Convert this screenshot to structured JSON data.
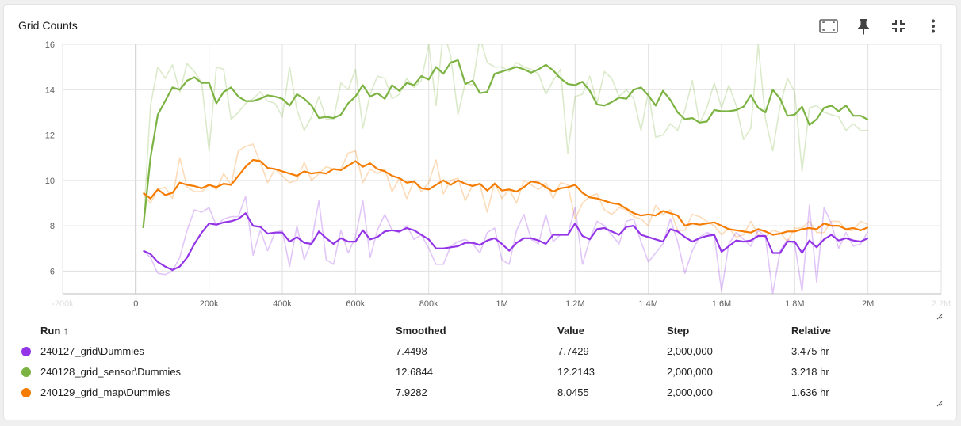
{
  "card": {
    "title": "Grid Counts"
  },
  "toolbar": [
    {
      "name": "fit-to-data-icon"
    },
    {
      "name": "pin-icon"
    },
    {
      "name": "collapse-icon"
    },
    {
      "name": "more-vert-icon"
    }
  ],
  "table": {
    "headers": {
      "run": "Run ↑",
      "smoothed": "Smoothed",
      "value": "Value",
      "step": "Step",
      "relative": "Relative"
    },
    "rows": [
      {
        "color": "#9334e6",
        "run": "240127_grid\\Dummies",
        "smoothed": "7.4498",
        "value": "7.7429",
        "step": "2,000,000",
        "relative": "3.475 hr"
      },
      {
        "color": "#7cb342",
        "run": "240128_grid_sensor\\Dummies",
        "smoothed": "12.6844",
        "value": "12.2143",
        "step": "2,000,000",
        "relative": "3.218 hr"
      },
      {
        "color": "#f57c00",
        "run": "240129_grid_map\\Dummies",
        "smoothed": "7.9282",
        "value": "8.0455",
        "step": "2,000,000",
        "relative": "1.636 hr"
      }
    ]
  },
  "chart_data": {
    "type": "line",
    "title": "Grid Counts",
    "xlim": [
      -200000,
      2200000
    ],
    "ylim": [
      5,
      16
    ],
    "x_ticks": [
      -200000,
      0,
      200000,
      400000,
      600000,
      800000,
      1000000,
      1200000,
      1400000,
      1600000,
      1800000,
      2000000,
      2200000
    ],
    "x_tick_labels": [
      "-200k",
      "0",
      "200k",
      "400k",
      "600k",
      "800k",
      "1M",
      "1.2M",
      "1.4M",
      "1.6M",
      "1.8M",
      "2M",
      "2.2M"
    ],
    "y_ticks": [
      6,
      8,
      10,
      12,
      14,
      16
    ],
    "y_tick_labels": [
      "6",
      "8",
      "10",
      "12",
      "14",
      "16"
    ],
    "grid": true,
    "series": [
      {
        "name": "240128_grid_sensor\\Dummies",
        "color": "#7cb342",
        "x": [
          20000,
          40000,
          60000,
          80000,
          100000,
          120000,
          140000,
          160000,
          180000,
          200000,
          220000,
          240000,
          260000,
          280000,
          300000,
          320000,
          340000,
          360000,
          380000,
          400000,
          420000,
          440000,
          460000,
          480000,
          500000,
          520000,
          540000,
          560000,
          580000,
          600000,
          620000,
          640000,
          660000,
          680000,
          700000,
          720000,
          740000,
          760000,
          780000,
          800000,
          820000,
          840000,
          860000,
          880000,
          900000,
          920000,
          940000,
          960000,
          980000,
          1000000,
          1020000,
          1040000,
          1060000,
          1080000,
          1100000,
          1120000,
          1140000,
          1160000,
          1180000,
          1200000,
          1220000,
          1240000,
          1260000,
          1280000,
          1300000,
          1320000,
          1340000,
          1360000,
          1380000,
          1400000,
          1420000,
          1440000,
          1460000,
          1480000,
          1500000,
          1520000,
          1540000,
          1560000,
          1580000,
          1600000,
          1620000,
          1640000,
          1660000,
          1680000,
          1700000,
          1720000,
          1740000,
          1760000,
          1780000,
          1800000,
          1820000,
          1840000,
          1860000,
          1880000,
          1900000,
          1920000,
          1940000,
          1960000,
          1980000,
          2000000
        ],
        "smoothed": [
          7.9,
          11.0,
          12.9,
          13.5,
          14.1,
          14.0,
          14.4,
          14.55,
          14.3,
          14.3,
          13.4,
          13.9,
          14.1,
          13.7,
          13.5,
          13.5,
          13.6,
          13.75,
          13.7,
          13.6,
          13.3,
          13.8,
          13.6,
          13.3,
          12.75,
          12.8,
          12.75,
          12.9,
          13.4,
          13.7,
          14.2,
          13.7,
          13.85,
          13.6,
          14.2,
          13.95,
          14.3,
          14.2,
          14.6,
          14.45,
          15.0,
          14.7,
          15.2,
          15.3,
          14.25,
          14.4,
          13.85,
          13.9,
          14.7,
          14.8,
          14.9,
          15.0,
          14.9,
          14.75,
          14.9,
          15.1,
          14.85,
          14.5,
          14.25,
          14.2,
          14.35,
          13.95,
          13.35,
          13.3,
          13.45,
          13.65,
          13.6,
          14.0,
          14.1,
          13.75,
          13.3,
          13.95,
          13.55,
          13.0,
          12.7,
          12.75,
          12.55,
          12.6,
          13.1,
          13.05,
          13.05,
          13.1,
          13.25,
          13.75,
          13.2,
          13.0,
          14.0,
          13.6,
          12.85,
          12.9,
          13.25,
          12.45,
          12.7,
          13.2,
          13.3,
          13.05,
          13.3,
          12.85,
          12.85,
          12.68
        ],
        "raw": [
          7.9,
          13.3,
          15.0,
          14.5,
          15.1,
          13.9,
          15.15,
          14.8,
          14.3,
          11.3,
          15.0,
          14.9,
          12.7,
          13.0,
          13.4,
          13.6,
          13.9,
          13.5,
          13.4,
          12.8,
          15.0,
          13.1,
          12.2,
          12.8,
          13.7,
          12.7,
          12.7,
          14.3,
          14.0,
          14.9,
          12.3,
          13.8,
          14.6,
          14.5,
          13.6,
          13.8,
          14.5,
          14.1,
          14.4,
          16.0,
          13.3,
          16.6,
          15.5,
          12.9,
          14.3,
          14.2,
          16.3,
          15.2,
          15.0,
          15.0,
          14.8,
          15.2,
          15.0,
          14.9,
          14.7,
          13.8,
          14.4,
          14.9,
          11.2,
          13.7,
          13.8,
          14.6,
          13.4,
          14.8,
          14.5,
          13.7,
          14.0,
          13.6,
          12.2,
          13.9,
          11.9,
          12.0,
          12.5,
          12.2,
          13.1,
          14.4,
          12.5,
          13.2,
          14.3,
          13.2,
          14.2,
          13.3,
          11.8,
          12.3,
          16.0,
          12.7,
          11.3,
          13.3,
          14.5,
          13.9,
          10.4,
          13.2,
          13.3,
          13.0,
          12.9,
          12.8,
          12.2,
          12.5,
          12.2,
          12.21
        ]
      },
      {
        "name": "240129_grid_map\\Dummies",
        "color": "#f57c00",
        "x": [
          20000,
          40000,
          60000,
          80000,
          100000,
          120000,
          140000,
          160000,
          180000,
          200000,
          220000,
          240000,
          260000,
          280000,
          300000,
          320000,
          340000,
          360000,
          380000,
          400000,
          420000,
          440000,
          460000,
          480000,
          500000,
          520000,
          540000,
          560000,
          580000,
          600000,
          620000,
          640000,
          660000,
          680000,
          700000,
          720000,
          740000,
          760000,
          780000,
          800000,
          820000,
          840000,
          860000,
          880000,
          900000,
          920000,
          940000,
          960000,
          980000,
          1000000,
          1020000,
          1040000,
          1060000,
          1080000,
          1100000,
          1120000,
          1140000,
          1160000,
          1180000,
          1200000,
          1220000,
          1240000,
          1260000,
          1280000,
          1300000,
          1320000,
          1340000,
          1360000,
          1380000,
          1400000,
          1420000,
          1440000,
          1460000,
          1480000,
          1500000,
          1520000,
          1540000,
          1560000,
          1580000,
          1600000,
          1620000,
          1640000,
          1660000,
          1680000,
          1700000,
          1720000,
          1740000,
          1760000,
          1780000,
          1800000,
          1820000,
          1840000,
          1860000,
          1880000,
          1900000,
          1920000,
          1940000,
          1960000,
          1980000,
          2000000
        ],
        "smoothed": [
          9.45,
          9.2,
          9.6,
          9.35,
          9.45,
          9.9,
          9.8,
          9.75,
          9.65,
          9.8,
          9.7,
          9.85,
          9.8,
          10.2,
          10.6,
          10.9,
          10.85,
          10.55,
          10.5,
          10.4,
          10.3,
          10.2,
          10.4,
          10.3,
          10.35,
          10.3,
          10.5,
          10.45,
          10.65,
          10.85,
          10.6,
          10.75,
          10.5,
          10.4,
          10.2,
          10.1,
          9.9,
          9.95,
          9.65,
          9.6,
          9.8,
          10.0,
          9.8,
          10.0,
          9.85,
          9.75,
          9.85,
          9.55,
          9.85,
          9.55,
          9.6,
          9.5,
          9.7,
          9.95,
          9.9,
          9.7,
          9.5,
          9.65,
          9.7,
          9.8,
          9.45,
          9.25,
          9.2,
          9.1,
          9.0,
          8.95,
          8.75,
          8.55,
          8.45,
          8.5,
          8.45,
          8.65,
          8.55,
          8.45,
          8.0,
          8.1,
          8.05,
          8.1,
          8.15,
          8.0,
          7.85,
          7.8,
          7.75,
          7.7,
          7.85,
          7.75,
          7.6,
          7.65,
          7.75,
          7.75,
          7.85,
          7.9,
          7.85,
          8.1,
          8.0,
          8.0,
          7.85,
          7.9,
          7.8,
          7.93
        ],
        "raw": [
          9.4,
          9.0,
          9.6,
          9.7,
          9.2,
          11.0,
          9.7,
          9.5,
          9.5,
          9.8,
          9.6,
          10.3,
          9.8,
          11.3,
          11.5,
          11.6,
          10.8,
          9.9,
          10.5,
          10.2,
          9.9,
          10.0,
          10.8,
          10.0,
          10.3,
          10.6,
          10.5,
          10.5,
          11.2,
          11.3,
          9.9,
          10.5,
          10.3,
          10.5,
          9.5,
          10.1,
          9.2,
          10.0,
          9.5,
          9.9,
          10.9,
          9.4,
          10.0,
          10.1,
          9.1,
          9.8,
          9.8,
          8.6,
          9.9,
          9.2,
          9.6,
          9.0,
          10.0,
          9.8,
          9.6,
          9.9,
          9.2,
          9.9,
          9.8,
          8.3,
          9.0,
          9.3,
          9.4,
          8.7,
          8.5,
          8.8,
          8.7,
          8.4,
          8.3,
          8.0,
          8.9,
          8.5,
          8.7,
          7.8,
          7.8,
          8.5,
          8.4,
          8.2,
          8.0,
          7.6,
          7.9,
          7.5,
          7.6,
          8.2,
          7.6,
          7.5,
          7.8,
          7.7,
          7.3,
          7.9,
          7.9,
          8.2,
          7.7,
          7.7,
          8.2,
          8.2,
          7.8,
          7.8,
          8.2,
          8.05
        ]
      },
      {
        "name": "240127_grid\\Dummies",
        "color": "#9334e6",
        "x": [
          20000,
          40000,
          60000,
          80000,
          100000,
          120000,
          140000,
          160000,
          180000,
          200000,
          220000,
          240000,
          260000,
          280000,
          300000,
          320000,
          340000,
          360000,
          380000,
          400000,
          420000,
          440000,
          460000,
          480000,
          500000,
          520000,
          540000,
          560000,
          580000,
          600000,
          620000,
          640000,
          660000,
          680000,
          700000,
          720000,
          740000,
          760000,
          780000,
          800000,
          820000,
          840000,
          860000,
          880000,
          900000,
          920000,
          940000,
          960000,
          980000,
          1000000,
          1020000,
          1040000,
          1060000,
          1080000,
          1100000,
          1120000,
          1140000,
          1160000,
          1180000,
          1200000,
          1220000,
          1240000,
          1260000,
          1280000,
          1300000,
          1320000,
          1340000,
          1360000,
          1380000,
          1400000,
          1420000,
          1440000,
          1460000,
          1480000,
          1500000,
          1520000,
          1540000,
          1560000,
          1580000,
          1600000,
          1620000,
          1640000,
          1660000,
          1680000,
          1700000,
          1720000,
          1740000,
          1760000,
          1780000,
          1800000,
          1820000,
          1840000,
          1860000,
          1880000,
          1900000,
          1920000,
          1940000,
          1960000,
          1980000,
          2000000
        ],
        "smoothed": [
          6.9,
          6.75,
          6.4,
          6.2,
          6.05,
          6.2,
          6.6,
          7.2,
          7.7,
          8.1,
          8.05,
          8.15,
          8.2,
          8.3,
          8.55,
          8.0,
          7.95,
          7.65,
          7.7,
          7.7,
          7.3,
          7.5,
          7.25,
          7.2,
          7.75,
          7.45,
          7.2,
          7.45,
          7.3,
          7.3,
          7.8,
          7.4,
          7.5,
          7.75,
          7.8,
          7.75,
          7.9,
          7.8,
          7.6,
          7.4,
          7.0,
          7.0,
          7.05,
          7.1,
          7.25,
          7.25,
          7.15,
          7.35,
          7.45,
          7.2,
          6.9,
          7.25,
          7.45,
          7.45,
          7.35,
          7.2,
          7.6,
          7.6,
          7.6,
          8.1,
          7.55,
          7.4,
          7.85,
          7.9,
          7.75,
          7.6,
          7.95,
          8.0,
          7.6,
          7.5,
          7.4,
          7.3,
          7.85,
          7.75,
          7.5,
          7.3,
          7.45,
          7.55,
          7.6,
          6.85,
          7.1,
          7.35,
          7.3,
          7.35,
          7.55,
          7.55,
          6.8,
          6.8,
          7.3,
          7.3,
          6.8,
          7.35,
          7.05,
          7.4,
          7.6,
          7.35,
          7.45,
          7.35,
          7.3,
          7.45
        ],
        "raw": [
          6.9,
          6.6,
          5.9,
          5.85,
          6.0,
          6.6,
          7.8,
          8.7,
          8.6,
          8.8,
          8.0,
          8.3,
          8.4,
          8.4,
          9.3,
          6.7,
          7.8,
          6.9,
          7.7,
          7.8,
          6.2,
          8.0,
          6.5,
          7.3,
          9.1,
          6.5,
          6.3,
          7.8,
          6.8,
          7.5,
          9.1,
          6.6,
          7.8,
          8.5,
          7.8,
          7.7,
          8.0,
          7.4,
          7.6,
          7.0,
          6.3,
          6.3,
          7.1,
          7.3,
          7.4,
          7.2,
          6.8,
          7.7,
          7.9,
          6.5,
          6.3,
          7.8,
          8.5,
          7.4,
          7.2,
          8.5,
          7.3,
          7.6,
          7.6,
          8.8,
          6.3,
          7.4,
          8.2,
          8.0,
          7.6,
          7.2,
          8.2,
          8.3,
          7.3,
          6.4,
          6.8,
          7.2,
          8.3,
          7.3,
          5.9,
          6.9,
          7.5,
          7.7,
          7.6,
          5.1,
          7.2,
          7.7,
          7.4,
          7.1,
          7.8,
          7.5,
          5.0,
          6.9,
          7.4,
          7.2,
          5.1,
          8.9,
          5.5,
          8.8,
          8.1,
          7.0,
          7.7,
          7.1,
          7.2,
          7.74
        ]
      }
    ]
  }
}
